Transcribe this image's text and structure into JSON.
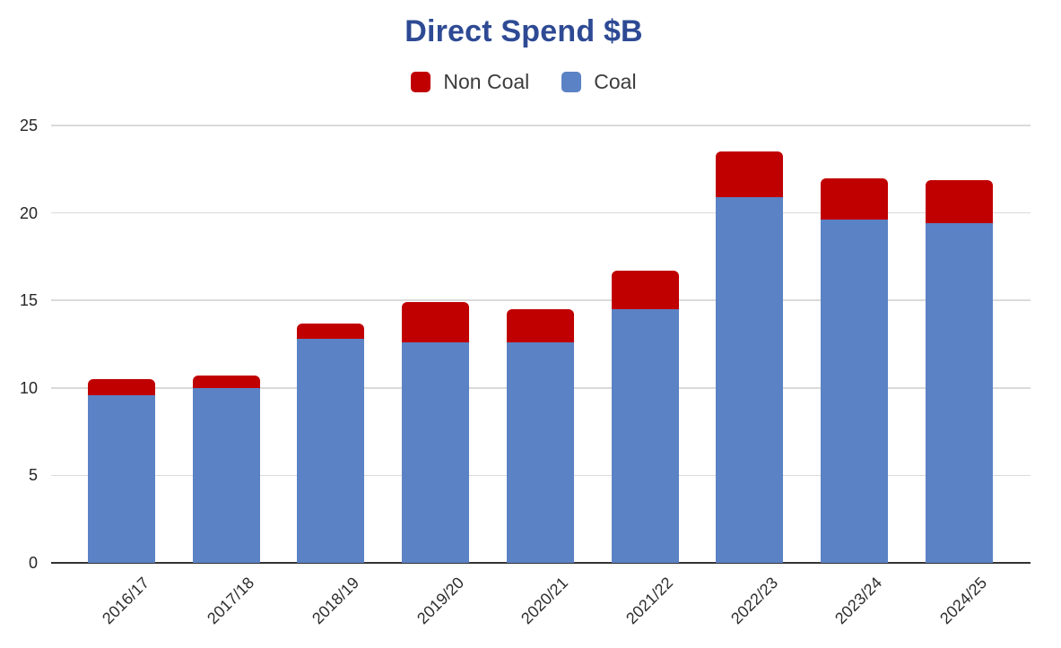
{
  "chart_data": {
    "type": "bar",
    "stacked": true,
    "title": "Direct Spend $B",
    "categories": [
      "2016/17",
      "2017/18",
      "2018/19",
      "2019/20",
      "2020/21",
      "2021/22",
      "2022/23",
      "2023/24",
      "2024/25"
    ],
    "series": [
      {
        "name": "Non Coal",
        "color": "#C00000",
        "values": [
          0.9,
          0.7,
          0.9,
          2.3,
          1.9,
          2.2,
          2.6,
          2.4,
          2.5
        ]
      },
      {
        "name": "Coal",
        "color": "#5B82C4",
        "values": [
          9.6,
          10.0,
          12.8,
          12.6,
          12.6,
          14.5,
          20.9,
          19.6,
          19.4
        ]
      }
    ],
    "totals": [
      10.5,
      10.7,
      13.7,
      14.9,
      14.5,
      16.7,
      23.5,
      22.0,
      21.9
    ],
    "xlabel": "",
    "ylabel": "",
    "ylim": [
      0,
      25
    ],
    "yticks": [
      0,
      5,
      10,
      15,
      20,
      25
    ],
    "grid": true,
    "legend_position": "top",
    "x_label_rotation": -45
  },
  "colors": {
    "title": "#2E4A94",
    "non_coal": "#C00000",
    "coal": "#5B82C4",
    "gridline": "#DADADA",
    "axis_line": "#333333",
    "tick_text": "#262626",
    "background": "#FFFFFF"
  }
}
